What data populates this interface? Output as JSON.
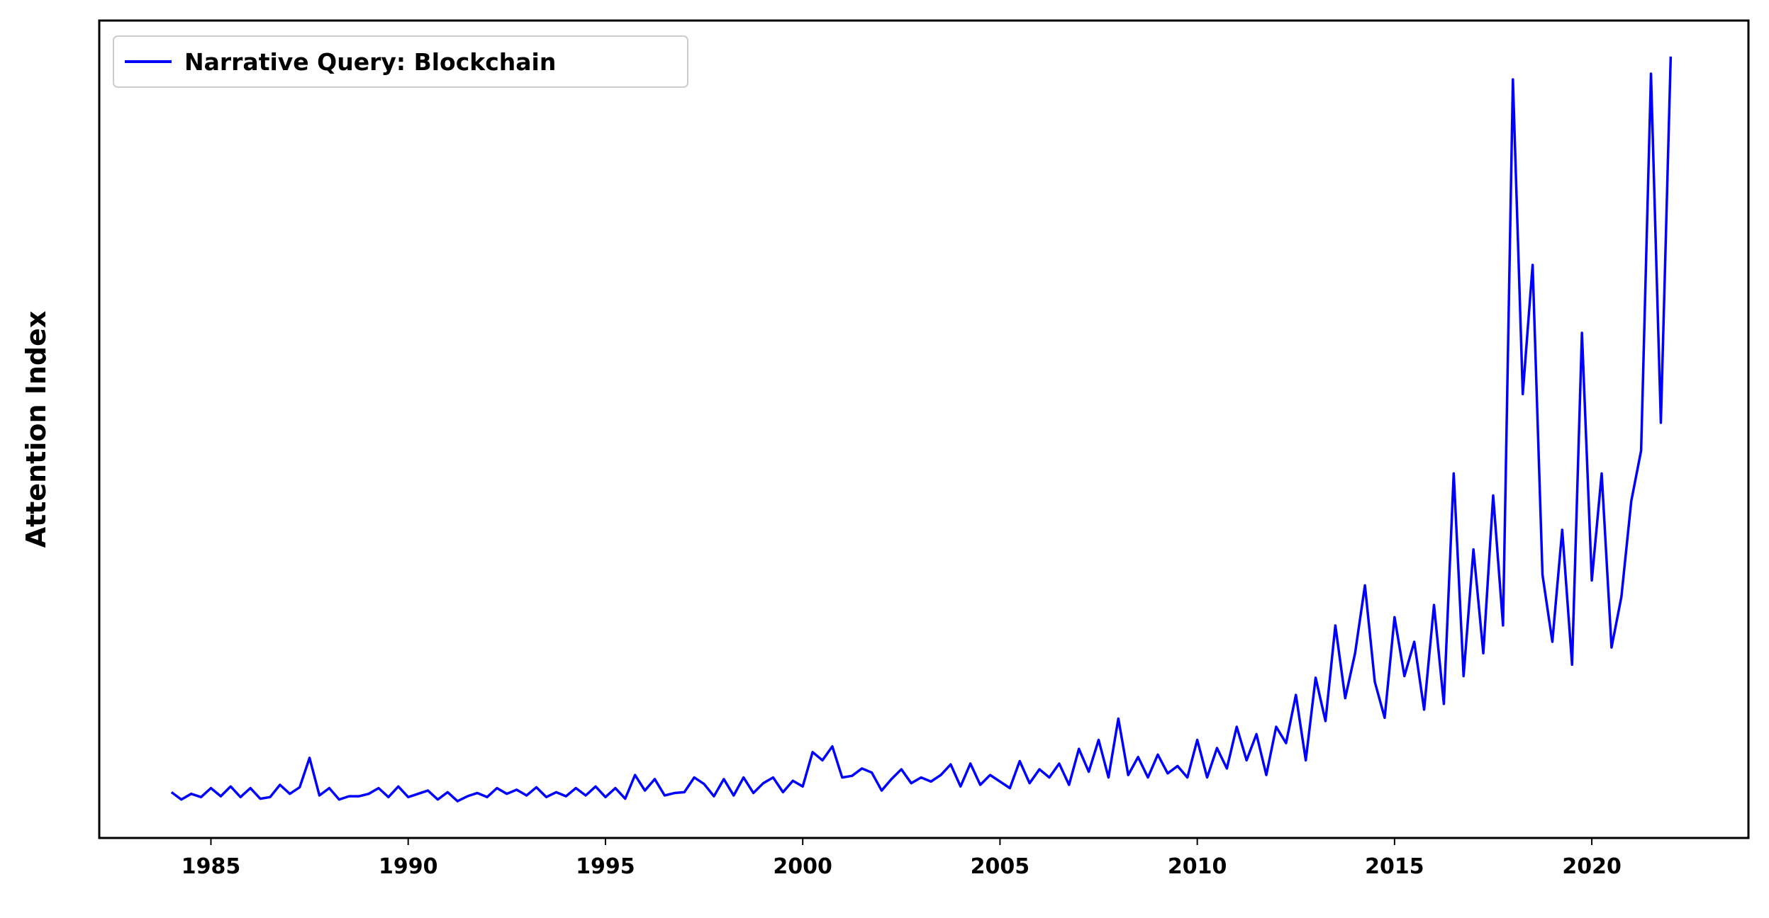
{
  "chart_data": {
    "type": "line",
    "ylabel": "Attention Index",
    "legend": "upper left",
    "xlim": [
      1982.17,
      2023.97
    ],
    "ylim": [
      0,
      100
    ],
    "xticks": [
      1985,
      1990,
      1995,
      2000,
      2005,
      2010,
      2015,
      2020
    ],
    "x": [
      1984.0,
      1984.25,
      1984.5,
      1984.75,
      1985.0,
      1985.25,
      1985.5,
      1985.75,
      1986.0,
      1986.25,
      1986.5,
      1986.75,
      1987.0,
      1987.25,
      1987.5,
      1987.75,
      1988.0,
      1988.25,
      1988.5,
      1988.75,
      1989.0,
      1989.25,
      1989.5,
      1989.75,
      1990.0,
      1990.25,
      1990.5,
      1990.75,
      1991.0,
      1991.25,
      1991.5,
      1991.75,
      1992.0,
      1992.25,
      1992.5,
      1992.75,
      1993.0,
      1993.25,
      1993.5,
      1993.75,
      1994.0,
      1994.25,
      1994.5,
      1994.75,
      1995.0,
      1995.25,
      1995.5,
      1995.75,
      1996.0,
      1996.25,
      1996.5,
      1996.75,
      1997.0,
      1997.25,
      1997.5,
      1997.75,
      1998.0,
      1998.25,
      1998.5,
      1998.75,
      1999.0,
      1999.25,
      1999.5,
      1999.75,
      2000.0,
      2000.25,
      2000.5,
      2000.75,
      2001.0,
      2001.25,
      2001.5,
      2001.75,
      2002.0,
      2002.25,
      2002.5,
      2002.75,
      2003.0,
      2003.25,
      2003.5,
      2003.75,
      2004.0,
      2004.25,
      2004.5,
      2004.75,
      2005.0,
      2005.25,
      2005.5,
      2005.75,
      2006.0,
      2006.25,
      2006.5,
      2006.75,
      2007.0,
      2007.25,
      2007.5,
      2007.75,
      2008.0,
      2008.25,
      2008.5,
      2008.75,
      2009.0,
      2009.25,
      2009.5,
      2009.75,
      2010.0,
      2010.25,
      2010.5,
      2010.75,
      2011.0,
      2011.25,
      2011.5,
      2011.75,
      2012.0,
      2012.25,
      2012.5,
      2012.75,
      2013.0,
      2013.25,
      2013.5,
      2013.75,
      2014.0,
      2014.25,
      2014.5,
      2014.75,
      2015.0,
      2015.25,
      2015.5,
      2015.75,
      2016.0,
      2016.25,
      2016.5,
      2016.75,
      2017.0,
      2017.25,
      2017.5,
      2017.75,
      2018.0,
      2018.25,
      2018.5,
      2018.75,
      2019.0,
      2019.25,
      2019.5,
      2019.75,
      2020.0,
      2020.25,
      2020.5,
      2020.75,
      2021.0,
      2021.25,
      2021.5,
      2021.75,
      2022.0
    ],
    "series": [
      {
        "name": "Narrative Query: Blockchain",
        "color": "#0000ff",
        "values": [
          5.6,
          4.7,
          5.4,
          5.0,
          6.1,
          5.1,
          6.3,
          5.0,
          6.1,
          4.8,
          5.0,
          6.5,
          5.4,
          6.2,
          9.8,
          5.2,
          6.1,
          4.7,
          5.1,
          5.1,
          5.4,
          6.1,
          5.0,
          6.3,
          5.0,
          5.4,
          5.8,
          4.7,
          5.6,
          4.5,
          5.1,
          5.5,
          5.0,
          6.1,
          5.4,
          5.9,
          5.2,
          6.2,
          5.0,
          5.6,
          5.1,
          6.1,
          5.2,
          6.3,
          5.0,
          6.1,
          4.8,
          7.7,
          5.8,
          7.2,
          5.2,
          5.5,
          5.6,
          7.4,
          6.6,
          5.1,
          7.2,
          5.2,
          7.4,
          5.5,
          6.7,
          7.4,
          5.6,
          7.0,
          6.3,
          10.5,
          9.5,
          11.2,
          7.4,
          7.6,
          8.5,
          8.0,
          5.8,
          7.2,
          8.4,
          6.7,
          7.4,
          6.9,
          7.7,
          9.0,
          6.3,
          9.1,
          6.5,
          7.7,
          6.9,
          6.1,
          9.4,
          6.7,
          8.4,
          7.4,
          9.1,
          6.5,
          10.9,
          8.1,
          12.0,
          7.4,
          14.6,
          7.7,
          9.9,
          7.4,
          10.2,
          7.9,
          8.8,
          7.4,
          12.0,
          7.4,
          11.0,
          8.5,
          13.6,
          9.5,
          12.7,
          7.7,
          13.6,
          11.6,
          17.5,
          9.5,
          19.6,
          14.3,
          26.0,
          17.1,
          22.6,
          30.9,
          19.1,
          14.7,
          27.0,
          19.8,
          24.0,
          15.7,
          28.5,
          16.4,
          44.6,
          19.8,
          35.3,
          22.6,
          41.9,
          26.0,
          92.8,
          54.3,
          70.1,
          32.2,
          24.0,
          37.7,
          21.2,
          61.8,
          31.5,
          44.6,
          23.3,
          29.5,
          41.2,
          47.4,
          93.5,
          50.8,
          95.6
        ]
      }
    ]
  }
}
